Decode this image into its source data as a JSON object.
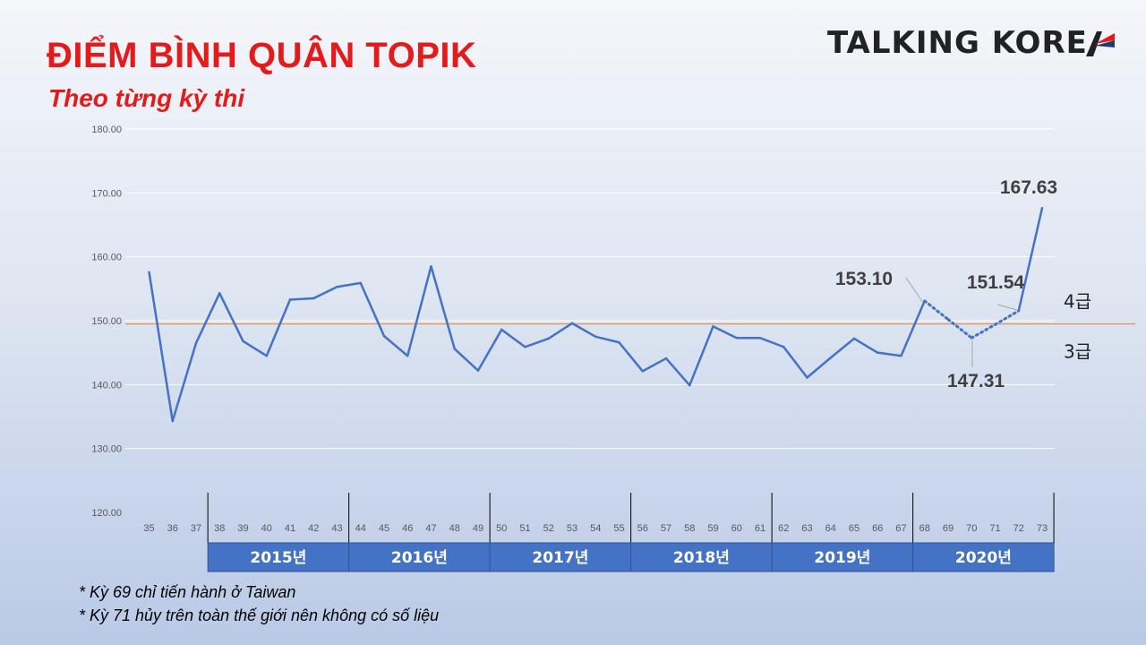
{
  "header": {
    "title": "ĐIỂM BÌNH QUÂN TOPIK",
    "subtitle": "Theo từng kỳ thi",
    "logo_text": "TALKING KORE"
  },
  "footnotes": [
    "* Kỳ 69 chỉ tiến hành ở Taiwan",
    "* Kỳ 71 hủy trên toàn thế giới nên không có số liệu"
  ],
  "colors": {
    "title": "#e31b1b",
    "line": "#4472c4",
    "threshold": "#ed7d31",
    "year_band": "#4472c4",
    "logo_red": "#e31b1b",
    "logo_navy": "#1f3b73"
  },
  "chart_data": {
    "type": "line",
    "x": [
      "35",
      "36",
      "37",
      "38",
      "39",
      "40",
      "41",
      "42",
      "43",
      "44",
      "45",
      "46",
      "47",
      "48",
      "49",
      "50",
      "51",
      "52",
      "53",
      "54",
      "55",
      "56",
      "57",
      "58",
      "59",
      "60",
      "61",
      "62",
      "63",
      "64",
      "65",
      "66",
      "67",
      "68",
      "69",
      "70",
      "71",
      "72",
      "73"
    ],
    "series": [
      {
        "values": [
          157.6,
          134.3,
          146.5,
          154.3,
          146.8,
          144.5,
          153.3,
          153.5,
          155.3,
          155.9,
          147.6,
          144.5,
          158.5,
          145.6,
          142.2,
          148.6,
          145.9,
          147.2,
          149.6,
          147.5,
          146.6,
          142.1,
          144.1,
          139.9,
          149.1,
          147.3,
          147.3,
          145.9,
          141.1,
          144.2,
          147.2,
          145.0,
          144.5,
          153.1,
          150.2,
          147.31,
          149.4,
          151.54,
          167.63
        ],
        "dotted_segments": [
          "68-69",
          "69-70",
          "70-71",
          "71-72"
        ]
      }
    ],
    "ylim": [
      120,
      180
    ],
    "yticks": [
      "120.00",
      "130.00",
      "140.00",
      "150.00",
      "160.00",
      "170.00",
      "180.00"
    ],
    "threshold": {
      "value": 149.5,
      "label_above": "4급",
      "label_below": "3급"
    },
    "annotations": [
      {
        "x": "68",
        "label": "153.10"
      },
      {
        "x": "70",
        "label": "147.31"
      },
      {
        "x": "72",
        "label": "151.54"
      },
      {
        "x": "73",
        "label": "167.63"
      }
    ],
    "year_groups": [
      {
        "label": "2015년",
        "from": "38",
        "to": "43"
      },
      {
        "label": "2016년",
        "from": "44",
        "to": "49"
      },
      {
        "label": "2017년",
        "from": "50",
        "to": "55"
      },
      {
        "label": "2018년",
        "from": "56",
        "to": "61"
      },
      {
        "label": "2019년",
        "from": "62",
        "to": "67"
      },
      {
        "label": "2020년",
        "from": "68",
        "to": "73"
      }
    ],
    "grid": true
  }
}
